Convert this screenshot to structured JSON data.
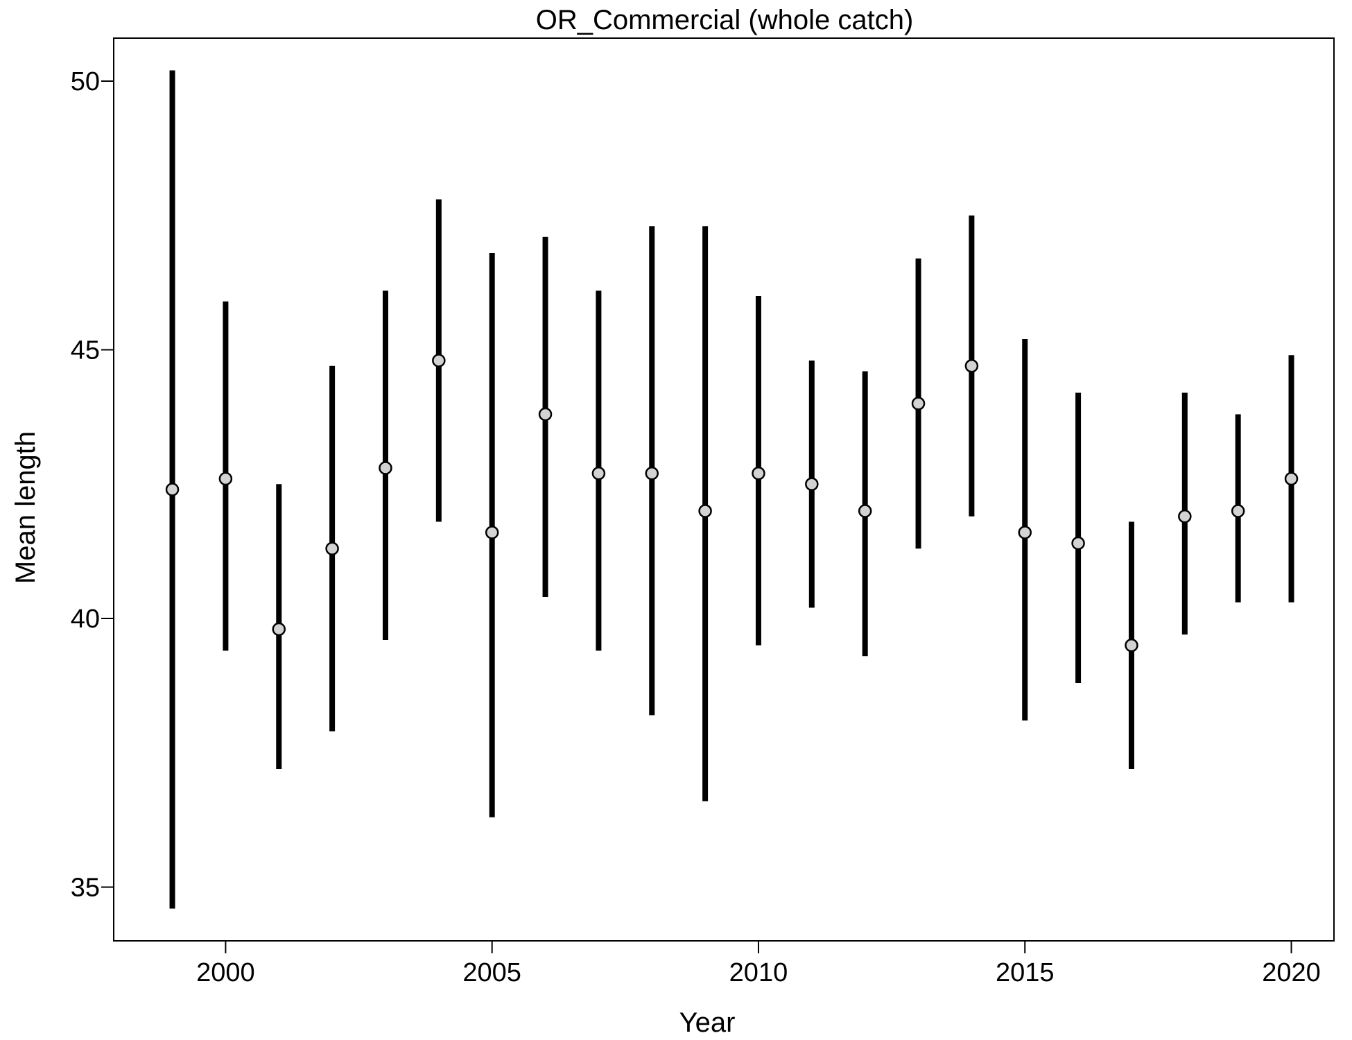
{
  "chart_data": {
    "type": "scatter",
    "title": "OR_Commercial (whole catch)",
    "xlabel": "Year",
    "ylabel": "Mean length",
    "xlim": [
      1997.9,
      2020.8
    ],
    "ylim": [
      34.0,
      50.8
    ],
    "x_ticks": [
      2000,
      2005,
      2010,
      2015,
      2020
    ],
    "x_tick_labels": [
      "2000",
      "2005",
      "2010",
      "2015",
      "2020"
    ],
    "y_ticks": [
      35,
      40,
      45,
      50
    ],
    "y_tick_labels": [
      "35",
      "40",
      "45",
      "50"
    ],
    "grid": false,
    "point_color": "#d3d3d3",
    "bar_color": "#000000",
    "points": [
      {
        "x": 1999,
        "y": 42.4,
        "lower": 34.6,
        "upper": 50.2
      },
      {
        "x": 2000,
        "y": 42.6,
        "lower": 39.4,
        "upper": 45.9
      },
      {
        "x": 2001,
        "y": 39.8,
        "lower": 37.2,
        "upper": 42.5
      },
      {
        "x": 2002,
        "y": 41.3,
        "lower": 37.9,
        "upper": 44.7
      },
      {
        "x": 2003,
        "y": 42.8,
        "lower": 39.6,
        "upper": 46.1
      },
      {
        "x": 2004,
        "y": 44.8,
        "lower": 41.8,
        "upper": 47.8
      },
      {
        "x": 2005,
        "y": 41.6,
        "lower": 36.3,
        "upper": 46.8
      },
      {
        "x": 2006,
        "y": 43.8,
        "lower": 40.4,
        "upper": 47.1
      },
      {
        "x": 2007,
        "y": 42.7,
        "lower": 39.4,
        "upper": 46.1
      },
      {
        "x": 2008,
        "y": 42.7,
        "lower": 38.2,
        "upper": 47.3
      },
      {
        "x": 2009,
        "y": 42.0,
        "lower": 36.6,
        "upper": 47.3
      },
      {
        "x": 2010,
        "y": 42.7,
        "lower": 39.5,
        "upper": 46.0
      },
      {
        "x": 2011,
        "y": 42.5,
        "lower": 40.2,
        "upper": 44.8
      },
      {
        "x": 2012,
        "y": 42.0,
        "lower": 39.3,
        "upper": 44.6
      },
      {
        "x": 2013,
        "y": 44.0,
        "lower": 41.3,
        "upper": 46.7
      },
      {
        "x": 2014,
        "y": 44.7,
        "lower": 41.9,
        "upper": 47.5
      },
      {
        "x": 2015,
        "y": 41.6,
        "lower": 38.1,
        "upper": 45.2
      },
      {
        "x": 2016,
        "y": 41.4,
        "lower": 38.8,
        "upper": 44.2
      },
      {
        "x": 2017,
        "y": 39.5,
        "lower": 37.2,
        "upper": 41.8
      },
      {
        "x": 2018,
        "y": 41.9,
        "lower": 39.7,
        "upper": 44.2
      },
      {
        "x": 2019,
        "y": 42.0,
        "lower": 40.3,
        "upper": 43.8
      },
      {
        "x": 2020,
        "y": 42.6,
        "lower": 40.3,
        "upper": 44.9
      }
    ]
  }
}
